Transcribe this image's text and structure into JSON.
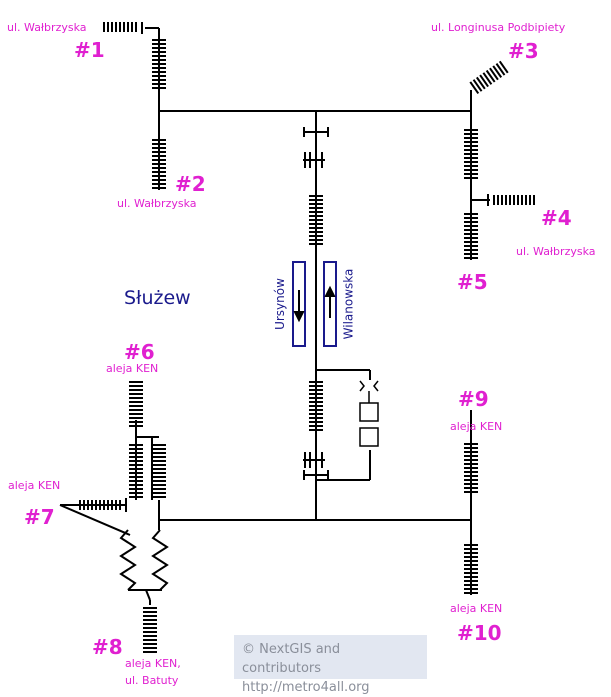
{
  "station": {
    "name": "Służew"
  },
  "exits": [
    {
      "number": "#1",
      "street": "ul. Wałbrzyska"
    },
    {
      "number": "#2",
      "street": "ul. Wałbrzyska"
    },
    {
      "number": "#3",
      "street": "ul. Longinusa Podbipiety"
    },
    {
      "number": "#4",
      "street": "ul. Wałbrzyska"
    },
    {
      "number": "#5",
      "street": ""
    },
    {
      "number": "#6",
      "street": "aleja KEN"
    },
    {
      "number": "#7",
      "street": "aleja KEN"
    },
    {
      "number": "#8",
      "street_line1": "aleja KEN,",
      "street_line2": "ul. Batuty"
    },
    {
      "number": "#9",
      "street": "aleja KEN"
    },
    {
      "number": "#10",
      "street": "aleja KEN"
    }
  ],
  "platform": {
    "left_direction": "Ursynów",
    "right_direction": "Wilanowska"
  },
  "attribution": {
    "line1": "© NextGIS and contributors",
    "line2": "http://metro4all.org"
  },
  "colors": {
    "line": "#000000",
    "exit_label": "#e020d0",
    "station_label": "#1a1a8c",
    "platform": "#1a1a8c",
    "attribution_bg": "#e2e7f1"
  },
  "icons": [
    "stairs-icon",
    "escalator-icon",
    "elevator-icon",
    "turnstile-icon",
    "direction-arrow-icon"
  ]
}
